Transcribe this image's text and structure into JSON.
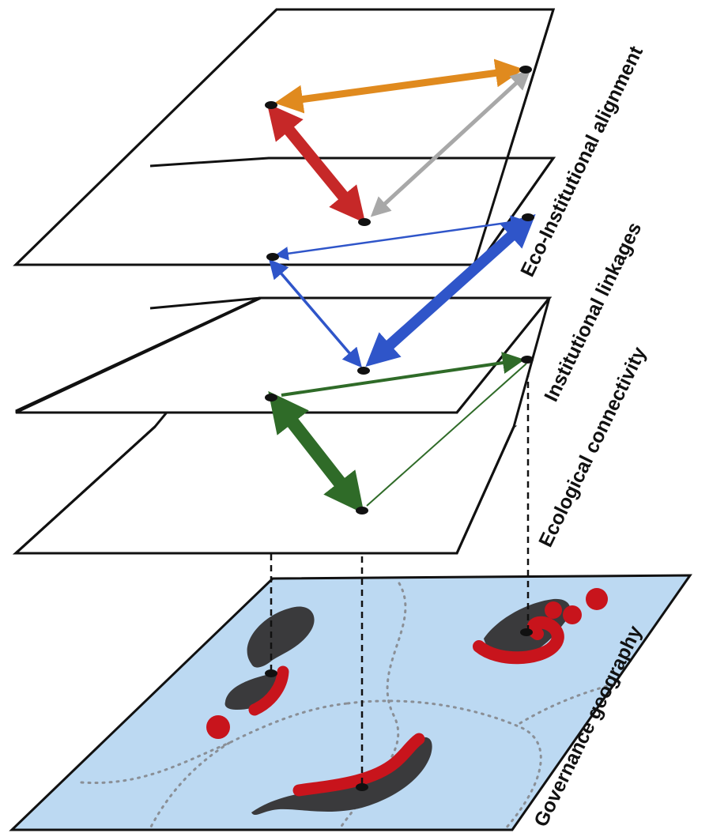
{
  "layers": {
    "alignment": {
      "label": "Eco-Institutional alignment"
    },
    "institutional": {
      "label": "Institutional linkages"
    },
    "ecological": {
      "label": "Ecological connectivity"
    },
    "geography": {
      "label": "Governance geography"
    }
  },
  "colors": {
    "alignment_top": "#e08a1e",
    "alignment_left": "#c62828",
    "alignment_right": "#a8a8a8",
    "institutional": "#2f55c9",
    "ecological": "#2f6b28",
    "habitat_dark": "#3a3a3c",
    "habitat_red": "#c8141c",
    "geography_fill": "#bcd9f2"
  }
}
